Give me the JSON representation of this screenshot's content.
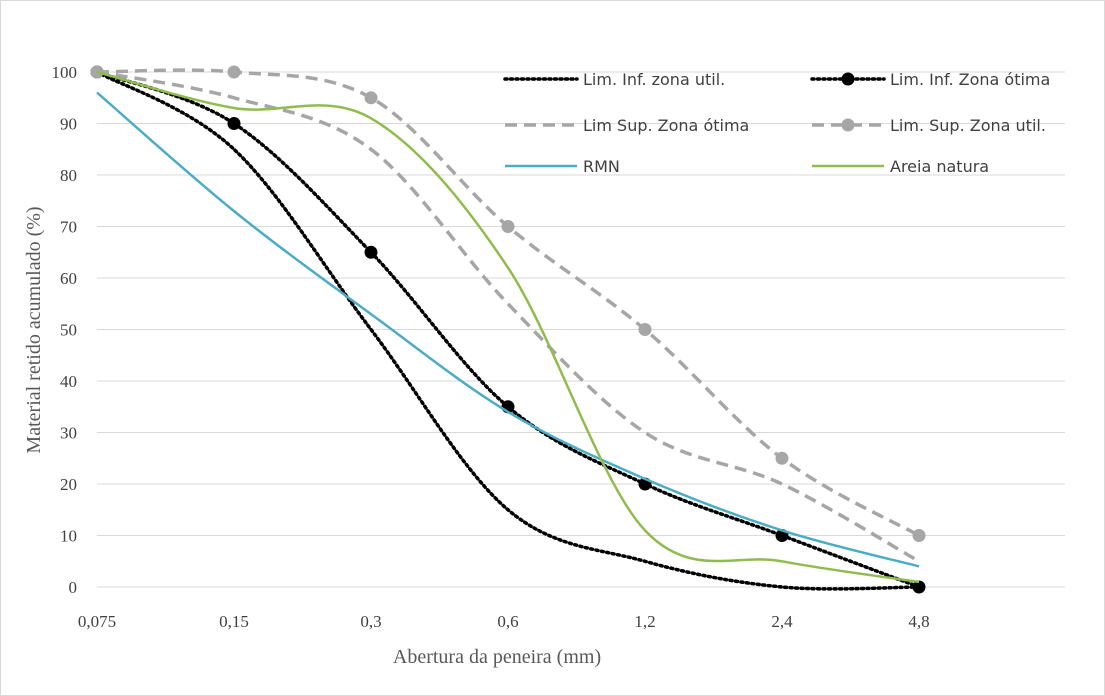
{
  "chart_data": {
    "type": "line",
    "xlabel": "Abertura da peneira (mm)",
    "ylabel": "Material retido acumulado (%)",
    "categories": [
      "0,075",
      "0,15",
      "0,3",
      "0,6",
      "1,2",
      "2,4",
      "4,8"
    ],
    "yticks": [
      0,
      10,
      20,
      30,
      40,
      50,
      60,
      70,
      80,
      90,
      100
    ],
    "ylim": [
      0,
      100
    ],
    "grid": "horizontal",
    "legend_position": "top-right",
    "series": [
      {
        "name": "Lim. Inf. zona util.",
        "values": [
          100,
          85,
          50,
          15,
          5,
          0,
          0
        ],
        "color": "#000000",
        "style": "dotted",
        "marker": "none"
      },
      {
        "name": "Lim. Inf. Zona ótima",
        "values": [
          100,
          90,
          65,
          35,
          20,
          10,
          0
        ],
        "color": "#000000",
        "style": "dotted",
        "marker": "circle"
      },
      {
        "name": "Lim Sup. Zona ótima",
        "values": [
          100,
          95,
          85,
          55,
          30,
          20,
          5
        ],
        "color": "#a6a6a6",
        "style": "dashed",
        "marker": "none"
      },
      {
        "name": "Lim. Sup. Zona util.",
        "values": [
          100,
          100,
          95,
          70,
          50,
          25,
          10
        ],
        "color": "#a6a6a6",
        "style": "dashed",
        "marker": "circle"
      },
      {
        "name": "RMN",
        "values": [
          96,
          73,
          53,
          34,
          21,
          11,
          4
        ],
        "color": "#4bacc6",
        "style": "solid",
        "marker": "none"
      },
      {
        "name": "Areia natura",
        "values": [
          100,
          93,
          91,
          62,
          11,
          5,
          1
        ],
        "color": "#8fbc4c",
        "style": "solid",
        "marker": "none"
      }
    ]
  }
}
